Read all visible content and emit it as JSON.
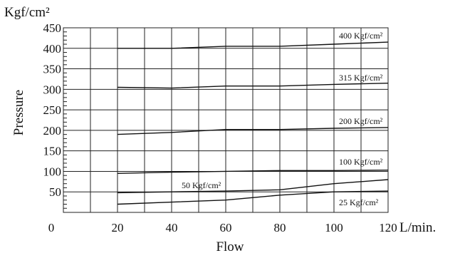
{
  "chart_data": {
    "type": "line",
    "y_unit": "Kgf/cm²",
    "x_unit": "L/min.",
    "xlabel": "Flow",
    "ylabel": "Pressure",
    "xlim": [
      0,
      120
    ],
    "ylim": [
      0,
      450
    ],
    "x_grid_step": 10,
    "y_grid_step": 50,
    "grid": true,
    "x_ticks": [
      {
        "value": 0,
        "label": "0"
      },
      {
        "value": 20,
        "label": "20"
      },
      {
        "value": 40,
        "label": "40"
      },
      {
        "value": 60,
        "label": "60"
      },
      {
        "value": 80,
        "label": "80"
      },
      {
        "value": 100,
        "label": "100"
      },
      {
        "value": 120,
        "label": "120"
      }
    ],
    "y_ticks": [
      {
        "value": 50,
        "label": "50"
      },
      {
        "value": 100,
        "label": "100"
      },
      {
        "value": 150,
        "label": "150"
      },
      {
        "value": 200,
        "label": "200"
      },
      {
        "value": 250,
        "label": "250"
      },
      {
        "value": 300,
        "label": "300"
      },
      {
        "value": 350,
        "label": "350"
      },
      {
        "value": 400,
        "label": "400"
      },
      {
        "value": 450,
        "label": "450"
      }
    ],
    "series": [
      {
        "name": "400 Kgf/cm²",
        "x": [
          20,
          40,
          60,
          80,
          100,
          120
        ],
        "y": [
          400,
          400,
          405,
          405,
          410,
          415
        ]
      },
      {
        "name": "315 Kgf/cm²",
        "x": [
          20,
          40,
          60,
          80,
          100,
          120
        ],
        "y": [
          305,
          303,
          308,
          308,
          312,
          315
        ]
      },
      {
        "name": "200 Kgf/cm²",
        "x": [
          20,
          40,
          60,
          80,
          100,
          120
        ],
        "y": [
          190,
          195,
          202,
          202,
          205,
          207
        ]
      },
      {
        "name": "100 Kgf/cm²",
        "x": [
          20,
          40,
          60,
          80,
          100,
          120
        ],
        "y": [
          95,
          98,
          100,
          102,
          102,
          103
        ]
      },
      {
        "name": "50 Kgf/cm²",
        "x": [
          20,
          40,
          60,
          80,
          100,
          120
        ],
        "y": [
          48,
          50,
          52,
          55,
          70,
          80
        ]
      },
      {
        "name": "25 Kgf/cm²",
        "x": [
          20,
          40,
          60,
          80,
          100,
          120
        ],
        "y": [
          20,
          25,
          30,
          42,
          50,
          52
        ]
      }
    ]
  }
}
